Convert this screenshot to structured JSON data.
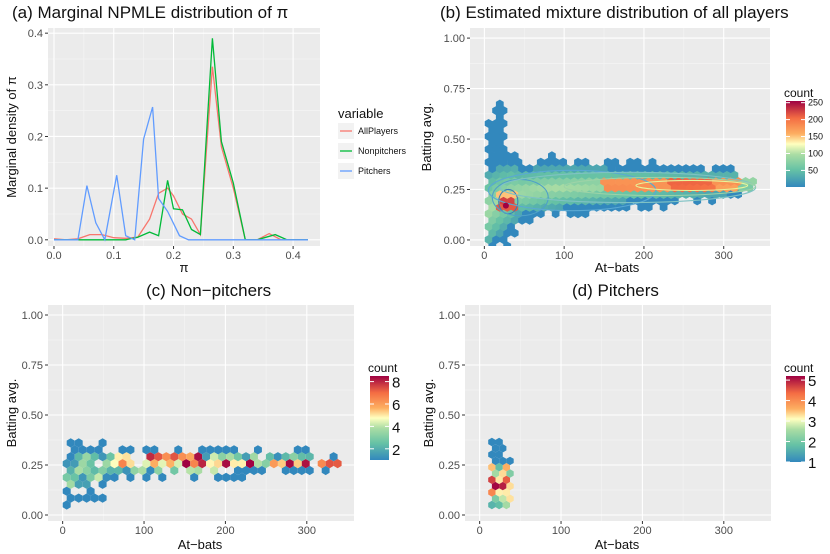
{
  "chart_data": [
    {
      "type": "line",
      "title": "(a) Marginal NPMLE distribution of  π",
      "xlabel": "π",
      "ylabel": "Marginal density of  π",
      "xlim": [
        -0.01,
        0.445
      ],
      "ylim": [
        -0.012,
        0.41
      ],
      "xticks": [
        0.0,
        0.1,
        0.2,
        0.3,
        0.4
      ],
      "xtick_labels": [
        "0.0",
        "0.1",
        "0.2",
        "0.3",
        "0.4"
      ],
      "yticks": [
        0.0,
        0.1,
        0.2,
        0.3,
        0.4
      ],
      "ytick_labels": [
        "0.0",
        "0.1",
        "0.2",
        "0.3",
        "0.4"
      ],
      "legend_title": "variable",
      "series": [
        {
          "name": "AllPlayers",
          "color": "#F8766D",
          "x": [
            0.0,
            0.02,
            0.04,
            0.06,
            0.08,
            0.1,
            0.12,
            0.14,
            0.16,
            0.175,
            0.19,
            0.2,
            0.215,
            0.23,
            0.245,
            0.265,
            0.28,
            0.3,
            0.32,
            0.34,
            0.36,
            0.38,
            0.4,
            0.425
          ],
          "y": [
            0.002,
            0.0,
            0.002,
            0.01,
            0.01,
            0.004,
            0.003,
            0.005,
            0.04,
            0.09,
            0.1,
            0.085,
            0.05,
            0.04,
            0.01,
            0.335,
            0.18,
            0.1,
            0.0,
            0.0,
            0.012,
            0.0,
            0.0,
            0.0
          ]
        },
        {
          "name": "Nonpitchers",
          "color": "#00BA38",
          "x": [
            0.0,
            0.04,
            0.08,
            0.12,
            0.14,
            0.16,
            0.175,
            0.19,
            0.2,
            0.215,
            0.23,
            0.245,
            0.265,
            0.28,
            0.3,
            0.32,
            0.34,
            0.37,
            0.39,
            0.425
          ],
          "y": [
            0.0,
            0.0,
            0.0,
            0.0,
            0.005,
            0.015,
            0.008,
            0.115,
            0.06,
            0.058,
            0.02,
            0.01,
            0.39,
            0.19,
            0.11,
            0.0,
            0.0,
            0.01,
            0.0,
            0.0
          ]
        },
        {
          "name": "Pitchers",
          "color": "#619CFF",
          "x": [
            0.0,
            0.02,
            0.04,
            0.055,
            0.07,
            0.085,
            0.105,
            0.12,
            0.135,
            0.15,
            0.165,
            0.175,
            0.19,
            0.21,
            0.225,
            0.245,
            0.265,
            0.285,
            0.3,
            0.325,
            0.35,
            0.38,
            0.41,
            0.425
          ],
          "y": [
            0.0,
            0.0,
            0.0,
            0.105,
            0.033,
            0.0,
            0.125,
            0.008,
            0.0,
            0.195,
            0.257,
            0.08,
            0.055,
            0.008,
            0.0,
            0.0,
            0.0,
            0.0,
            0.0,
            0.0,
            0.0,
            0.0,
            0.0,
            0.0
          ]
        }
      ]
    },
    {
      "type": "hexbin",
      "title": "(b) Estimated mixture distribution of all players",
      "xlabel": "At−bats",
      "ylabel": "Batting avg.",
      "xlim": [
        -18,
        358
      ],
      "ylim": [
        -0.03,
        1.05
      ],
      "xticks": [
        0,
        100,
        200,
        300
      ],
      "xtick_labels": [
        "0",
        "100",
        "200",
        "300"
      ],
      "yticks": [
        0.0,
        0.25,
        0.5,
        0.75,
        1.0
      ],
      "ytick_labels": [
        "0.00",
        "0.25",
        "0.50",
        "0.75",
        "1.00"
      ],
      "colorbar": {
        "title": "count",
        "min": 1,
        "max": 255,
        "ticks": [
          50,
          100,
          150,
          200,
          250
        ],
        "tick_labels": [
          "50",
          "100",
          "150",
          "200",
          "250"
        ]
      },
      "contours": true,
      "density_ridge": {
        "x": [
          5,
          20,
          40,
          80,
          150,
          250,
          340
        ],
        "y": [
          0.15,
          0.2,
          0.235,
          0.255,
          0.27,
          0.275,
          0.28
        ]
      }
    },
    {
      "type": "hexbin",
      "title": "(c) Non−pitchers",
      "xlabel": "At−bats",
      "ylabel": "Batting avg.",
      "xlim": [
        -18,
        358
      ],
      "ylim": [
        -0.03,
        1.05
      ],
      "xticks": [
        0,
        100,
        200,
        300
      ],
      "xtick_labels": [
        "0",
        "100",
        "200",
        "300"
      ],
      "yticks": [
        0.0,
        0.25,
        0.5,
        0.75,
        1.0
      ],
      "ytick_labels": [
        "0.00",
        "0.25",
        "0.50",
        "0.75",
        "1.00"
      ],
      "colorbar": {
        "title": "count",
        "min": 1,
        "max": 8.5,
        "ticks": [
          2,
          4,
          6,
          8
        ],
        "tick_labels": [
          "2",
          "4",
          "6",
          "8"
        ]
      },
      "x_range": [
        5,
        340
      ],
      "y_range": [
        0.05,
        0.44
      ]
    },
    {
      "type": "hexbin",
      "title": "(d) Pitchers",
      "xlabel": "At−bats",
      "ylabel": "Batting avg.",
      "xlim": [
        -18,
        358
      ],
      "ylim": [
        -0.03,
        1.05
      ],
      "xticks": [
        0,
        100,
        200,
        300
      ],
      "xtick_labels": [
        "0",
        "100",
        "200",
        "300"
      ],
      "yticks": [
        0.0,
        0.25,
        0.5,
        0.75,
        1.0
      ],
      "ytick_labels": [
        "0.00",
        "0.25",
        "0.50",
        "0.75",
        "1.00"
      ],
      "colorbar": {
        "title": "count",
        "min": 1,
        "max": 5.2,
        "ticks": [
          1,
          2,
          3,
          4,
          5
        ],
        "tick_labels": [
          "1",
          "2",
          "3",
          "4",
          "5"
        ]
      },
      "x_range": [
        15,
        45
      ],
      "y_range": [
        0.05,
        0.38
      ]
    }
  ]
}
